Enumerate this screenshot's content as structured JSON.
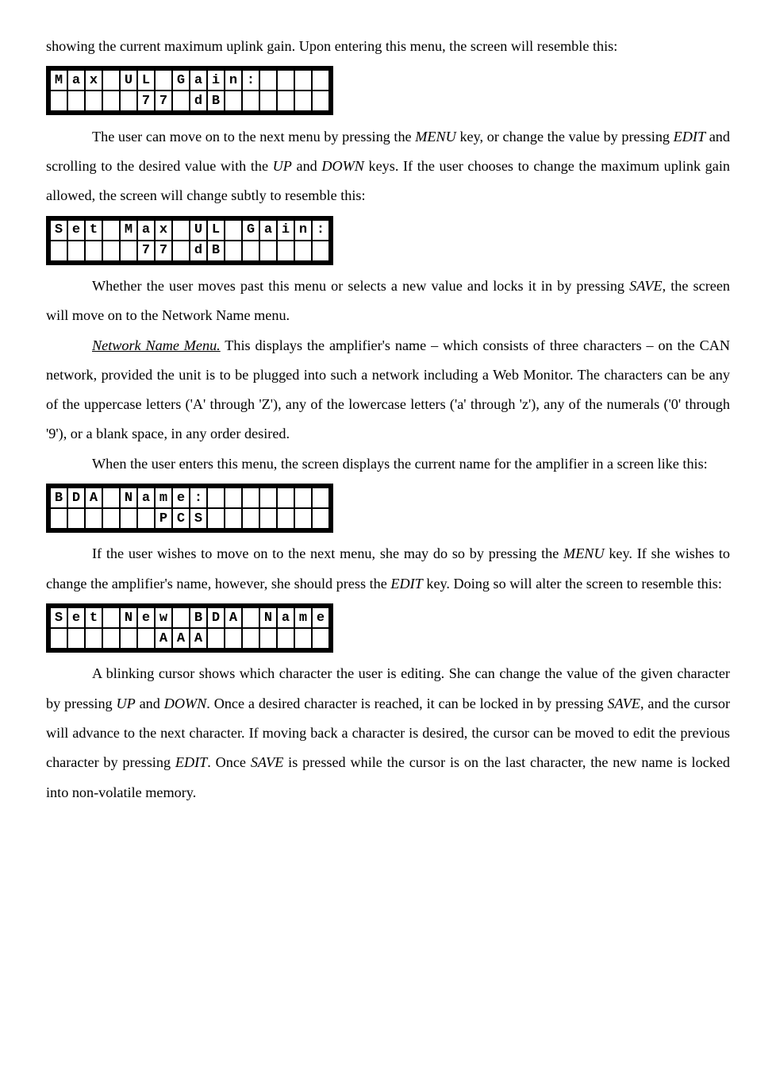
{
  "para1": "showing the current maximum uplink gain.  Upon entering this menu, the screen will resemble this:",
  "lcd1": {
    "row1": "Max UL Gain:    ",
    "row2": "     77 dB      "
  },
  "para2a": "The user can move on to the next menu by pressing the ",
  "menu": "MENU",
  "para2b": " key, or change the value by pressing ",
  "edit": "EDIT",
  "para2c": " and scrolling to the desired value with the ",
  "up": "UP",
  "para2d": " and ",
  "down": "DOWN",
  "para2e": " keys.  If the user chooses to change the maximum uplink gain allowed, the screen will change subtly to resemble this:",
  "lcd2": {
    "row1": "Set Max UL Gain:",
    "row2": "     77 dB      "
  },
  "para3a": "Whether the user moves past this menu or selects a new value and locks it in by pressing ",
  "save": "SAVE",
  "para3b": ", the screen will move on to the Network Name menu.",
  "netmenu": "Network Name Menu.",
  "para4": "  This displays the amplifier's name – which consists of three characters – on the CAN network, provided the unit is to be plugged into such a network including a Web Monitor.  The characters can be any of the uppercase letters ('A' through 'Z'), any of the lowercase letters ('a' through 'z'), any of the numerals ('0' through '9'), or a blank space, in any order desired.",
  "para5": "When the user enters this menu, the screen displays the current name for the amplifier in a screen like this:",
  "lcd3": {
    "row1": "BDA Name:       ",
    "row2": "      PCS       "
  },
  "para6a": "If the user wishes to move on to the next menu, she may do so by pressing the ",
  "para6b": " key.  If she wishes to change the amplifier's name, however, she should press the ",
  "para6c": " key.  Doing so will alter the screen to resemble this:",
  "lcd4": {
    "row1": "Set New BDA Name",
    "row2": "      AAA       "
  },
  "para7a": "A blinking cursor shows which character the user is editing.  She can change the value of the given character by pressing ",
  "para7b": ".  Once a desired character is reached, it can be locked in by pressing ",
  "para7c": ", and the cursor will advance to the next character.  If moving back a character is desired, the cursor can be moved to edit the previous character by pressing ",
  "para7d": ".  Once ",
  "para7e": " is pressed while the cursor is on the last character, the new name is locked into non-volatile memory.",
  "cols": 16
}
